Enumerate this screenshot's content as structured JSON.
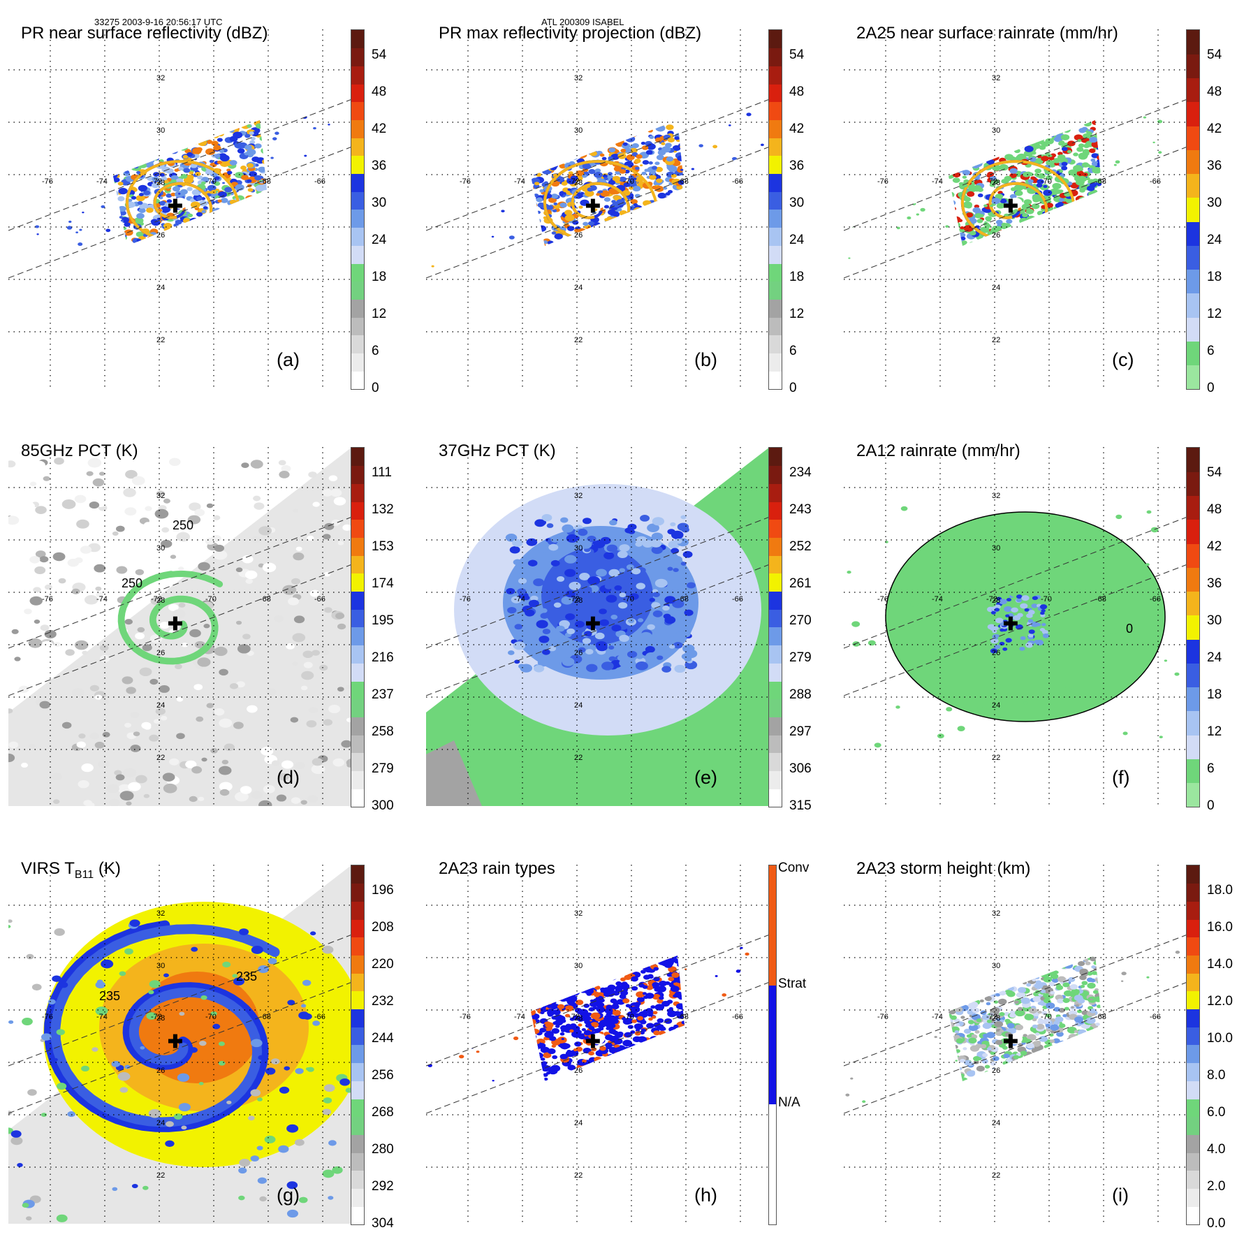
{
  "header": {
    "left": "33275 2003-9-16 20:56:17 UTC",
    "center": "ATL 200309 ISABEL"
  },
  "grid": {
    "lat_labels": [
      "32",
      "30",
      "28",
      "26",
      "24",
      "22"
    ],
    "lon_labels": [
      "-76",
      "-74",
      "-72",
      "-70",
      "-68",
      "-66"
    ]
  },
  "colors": {
    "ramp": [
      "#ffffff",
      "#e6e6e6",
      "#c8c8c8",
      "#a0a0a0",
      "#6fd67a",
      "#c7d7f7",
      "#8fb6ef",
      "#4e86e6",
      "#1c34e0",
      "#f2f200",
      "#f4a21c",
      "#f07a10",
      "#f04812",
      "#d21b0e",
      "#8f1d10",
      "#5c1a10"
    ],
    "ocean_blue": "#1c34e0",
    "conv": "#f05a14",
    "strat": "#1212e6"
  },
  "panels": [
    {
      "id": "a",
      "title": "PR near surface reflectivity (dBZ)",
      "label": "(a)",
      "ticks": [
        "54",
        "48",
        "42",
        "36",
        "30",
        "24",
        "18",
        "12",
        "6",
        "0"
      ]
    },
    {
      "id": "b",
      "title": "PR max reflectivity projection (dBZ)",
      "label": "(b)",
      "ticks": [
        "54",
        "48",
        "42",
        "36",
        "30",
        "24",
        "18",
        "12",
        "6",
        "0"
      ]
    },
    {
      "id": "c",
      "title": "2A25 near surface rainrate (mm/hr)",
      "label": "(c)",
      "ticks": [
        "54",
        "48",
        "42",
        "36",
        "30",
        "24",
        "18",
        "12",
        "6",
        "0"
      ]
    },
    {
      "id": "d",
      "title": "85GHz PCT (K)",
      "label": "(d)",
      "ticks": [
        "111",
        "132",
        "153",
        "174",
        "195",
        "216",
        "237",
        "258",
        "279",
        "300"
      ],
      "contours": [
        "250",
        "250"
      ]
    },
    {
      "id": "e",
      "title": "37GHz PCT (K)",
      "label": "(e)",
      "ticks": [
        "234",
        "243",
        "252",
        "261",
        "270",
        "279",
        "288",
        "297",
        "306",
        "315"
      ]
    },
    {
      "id": "f",
      "title": "2A12 rainrate (mm/hr)",
      "label": "(f)",
      "ticks": [
        "54",
        "48",
        "42",
        "36",
        "30",
        "24",
        "18",
        "12",
        "6",
        "0"
      ],
      "contours": [
        "0"
      ]
    },
    {
      "id": "g",
      "title_main": "VIRS T",
      "title_sub": "B11",
      "title_tail": " (K)",
      "label": "(g)",
      "ticks": [
        "196",
        "208",
        "220",
        "232",
        "244",
        "256",
        "268",
        "280",
        "292",
        "304"
      ],
      "contours": [
        "235",
        "235"
      ]
    },
    {
      "id": "h",
      "title": "2A23 rain types",
      "label": "(h)",
      "cat_labels": [
        "Conv",
        "Strat",
        "N/A"
      ]
    },
    {
      "id": "i",
      "title": "2A23 storm height (km)",
      "label": "(i)",
      "ticks": [
        "18.0",
        "16.0",
        "14.0",
        "12.0",
        "10.0",
        "8.0",
        "6.0",
        "4.0",
        "2.0",
        "0.0"
      ]
    }
  ]
}
